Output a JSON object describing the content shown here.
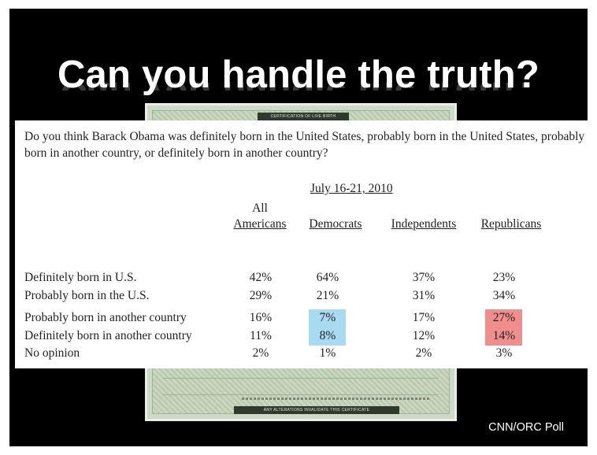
{
  "slide": {
    "title": "Can you handle the truth?",
    "source": "CNN/ORC Poll"
  },
  "certificate": {
    "header": "CERTIFICATION OF LIVE BIRTH",
    "footer": "ANY ALTERATIONS INVALIDATE THIS CERTIFICATE"
  },
  "poll": {
    "question": "Do you think Barack Obama was definitely born in the United States, probably born in the United States, probably born in another country, or definitely born in another country?",
    "date": "July 16-21, 2010",
    "columns": [
      {
        "line1": "All",
        "line2": "Americans"
      },
      {
        "line1": "",
        "line2": "Democrats"
      },
      {
        "line1": "",
        "line2": "Independents"
      },
      {
        "line1": "",
        "line2": "Republicans"
      }
    ],
    "rows": [
      {
        "label": "Definitely born in U.S.",
        "values": [
          "42%",
          "64%",
          "37%",
          "23%"
        ]
      },
      {
        "label": "Probably born in the U.S.",
        "values": [
          "29%",
          "21%",
          "31%",
          "34%"
        ]
      },
      {
        "label": "Probably born in another country",
        "values": [
          "16%",
          "7%",
          "17%",
          "27%"
        ]
      },
      {
        "label": "Definitely born in another country",
        "values": [
          "11%",
          "8%",
          "12%",
          "14%"
        ]
      },
      {
        "label": "No opinion",
        "values": [
          "2%",
          "1%",
          "2%",
          "3%"
        ]
      }
    ],
    "highlight_colors": {
      "democrats": "#a8daf2",
      "republicans": "#f08e8e"
    }
  }
}
